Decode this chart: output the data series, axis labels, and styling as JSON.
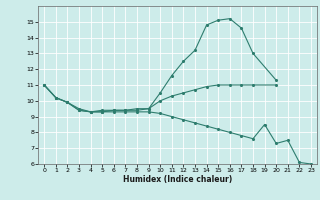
{
  "xlabel": "Humidex (Indice chaleur)",
  "bg_color": "#cdecea",
  "grid_color": "#ffffff",
  "line_color": "#2e7d6e",
  "xlim": [
    -0.5,
    23.5
  ],
  "ylim": [
    6,
    16
  ],
  "yticks": [
    6,
    7,
    8,
    9,
    10,
    11,
    12,
    13,
    14,
    15
  ],
  "xticks": [
    0,
    1,
    2,
    3,
    4,
    5,
    6,
    7,
    8,
    9,
    10,
    11,
    12,
    13,
    14,
    15,
    16,
    17,
    18,
    19,
    20,
    21,
    22,
    23
  ],
  "series": [
    {
      "x": [
        0,
        1,
        2,
        3,
        4,
        5,
        6,
        7,
        8,
        9,
        10,
        11,
        12,
        13,
        14,
        15,
        16,
        17,
        18,
        20
      ],
      "y": [
        11.0,
        10.2,
        9.9,
        9.4,
        9.3,
        9.4,
        9.4,
        9.4,
        9.5,
        9.5,
        10.5,
        11.6,
        12.5,
        13.2,
        14.8,
        15.1,
        15.2,
        14.6,
        13.0,
        11.3
      ]
    },
    {
      "x": [
        0,
        1,
        2,
        3,
        4,
        5,
        6,
        7,
        8,
        9,
        10,
        11,
        12,
        13,
        14,
        15,
        16,
        17,
        18,
        20
      ],
      "y": [
        11.0,
        10.2,
        9.9,
        9.5,
        9.3,
        9.3,
        9.4,
        9.4,
        9.4,
        9.5,
        10.0,
        10.3,
        10.5,
        10.7,
        10.9,
        11.0,
        11.0,
        11.0,
        11.0,
        11.0
      ]
    },
    {
      "x": [
        0,
        1,
        2,
        3,
        4,
        5,
        6,
        7,
        8,
        9,
        10,
        11,
        12,
        13,
        14,
        15,
        16,
        17,
        18,
        19,
        20,
        21,
        22,
        23
      ],
      "y": [
        11.0,
        10.2,
        9.9,
        9.4,
        9.3,
        9.3,
        9.3,
        9.3,
        9.3,
        9.3,
        9.2,
        9.0,
        8.8,
        8.6,
        8.4,
        8.2,
        8.0,
        7.8,
        7.6,
        8.5,
        7.3,
        7.5,
        6.1,
        6.0
      ]
    }
  ]
}
